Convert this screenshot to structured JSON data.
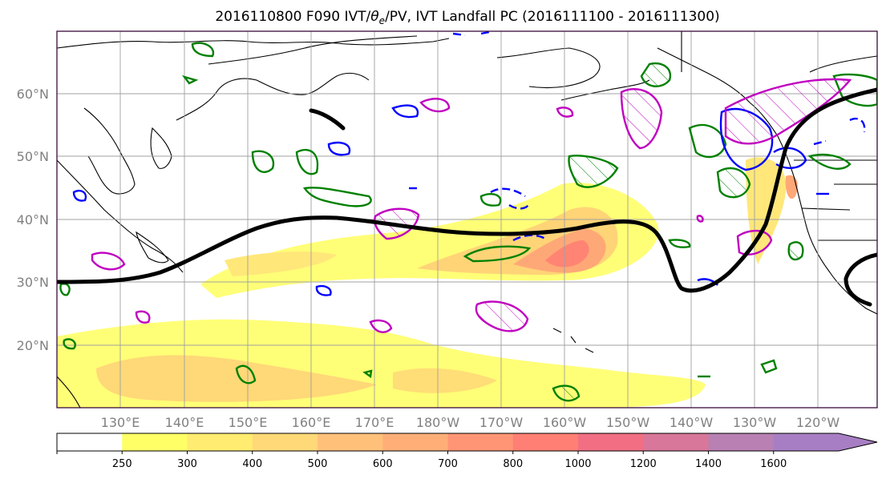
{
  "title": "2016110800 F090 IVT/θe/PV, IVT Landfall PC (2016111100 - 2016111300)",
  "title_parts": {
    "pre": "2016110800 F090 IVT/",
    "theta": "θ",
    "sub": "e",
    "post": "/PV, IVT Landfall PC (2016111100 - 2016111300)"
  },
  "map": {
    "lat_labels": [
      "20°N",
      "30°N",
      "40°N",
      "50°N",
      "60°N"
    ],
    "lon_labels": [
      "130°E",
      "140°E",
      "150°E",
      "160°E",
      "170°E",
      "180°W",
      "170°W",
      "160°W",
      "150°W",
      "140°W",
      "130°W",
      "120°W"
    ],
    "colors": {
      "coast": "#000000",
      "grid": "#a0a0a0",
      "ivt_contour": "#000000",
      "pv_contour": "#008000",
      "theta_contour": "#0000ff",
      "pc_contour": "#c000c0"
    }
  },
  "colorbar": {
    "levels": [
      "250",
      "300",
      "400",
      "500",
      "600",
      "700",
      "800",
      "1000",
      "1200",
      "1400",
      "1600"
    ],
    "colors": [
      "#ffffff",
      "#ffff66",
      "#ffec70",
      "#ffd977",
      "#ffc17a",
      "#ffae78",
      "#ff9574",
      "#ff7f74",
      "#f26f83",
      "#d8779a",
      "#b880b3",
      "#a77ec4"
    ]
  }
}
